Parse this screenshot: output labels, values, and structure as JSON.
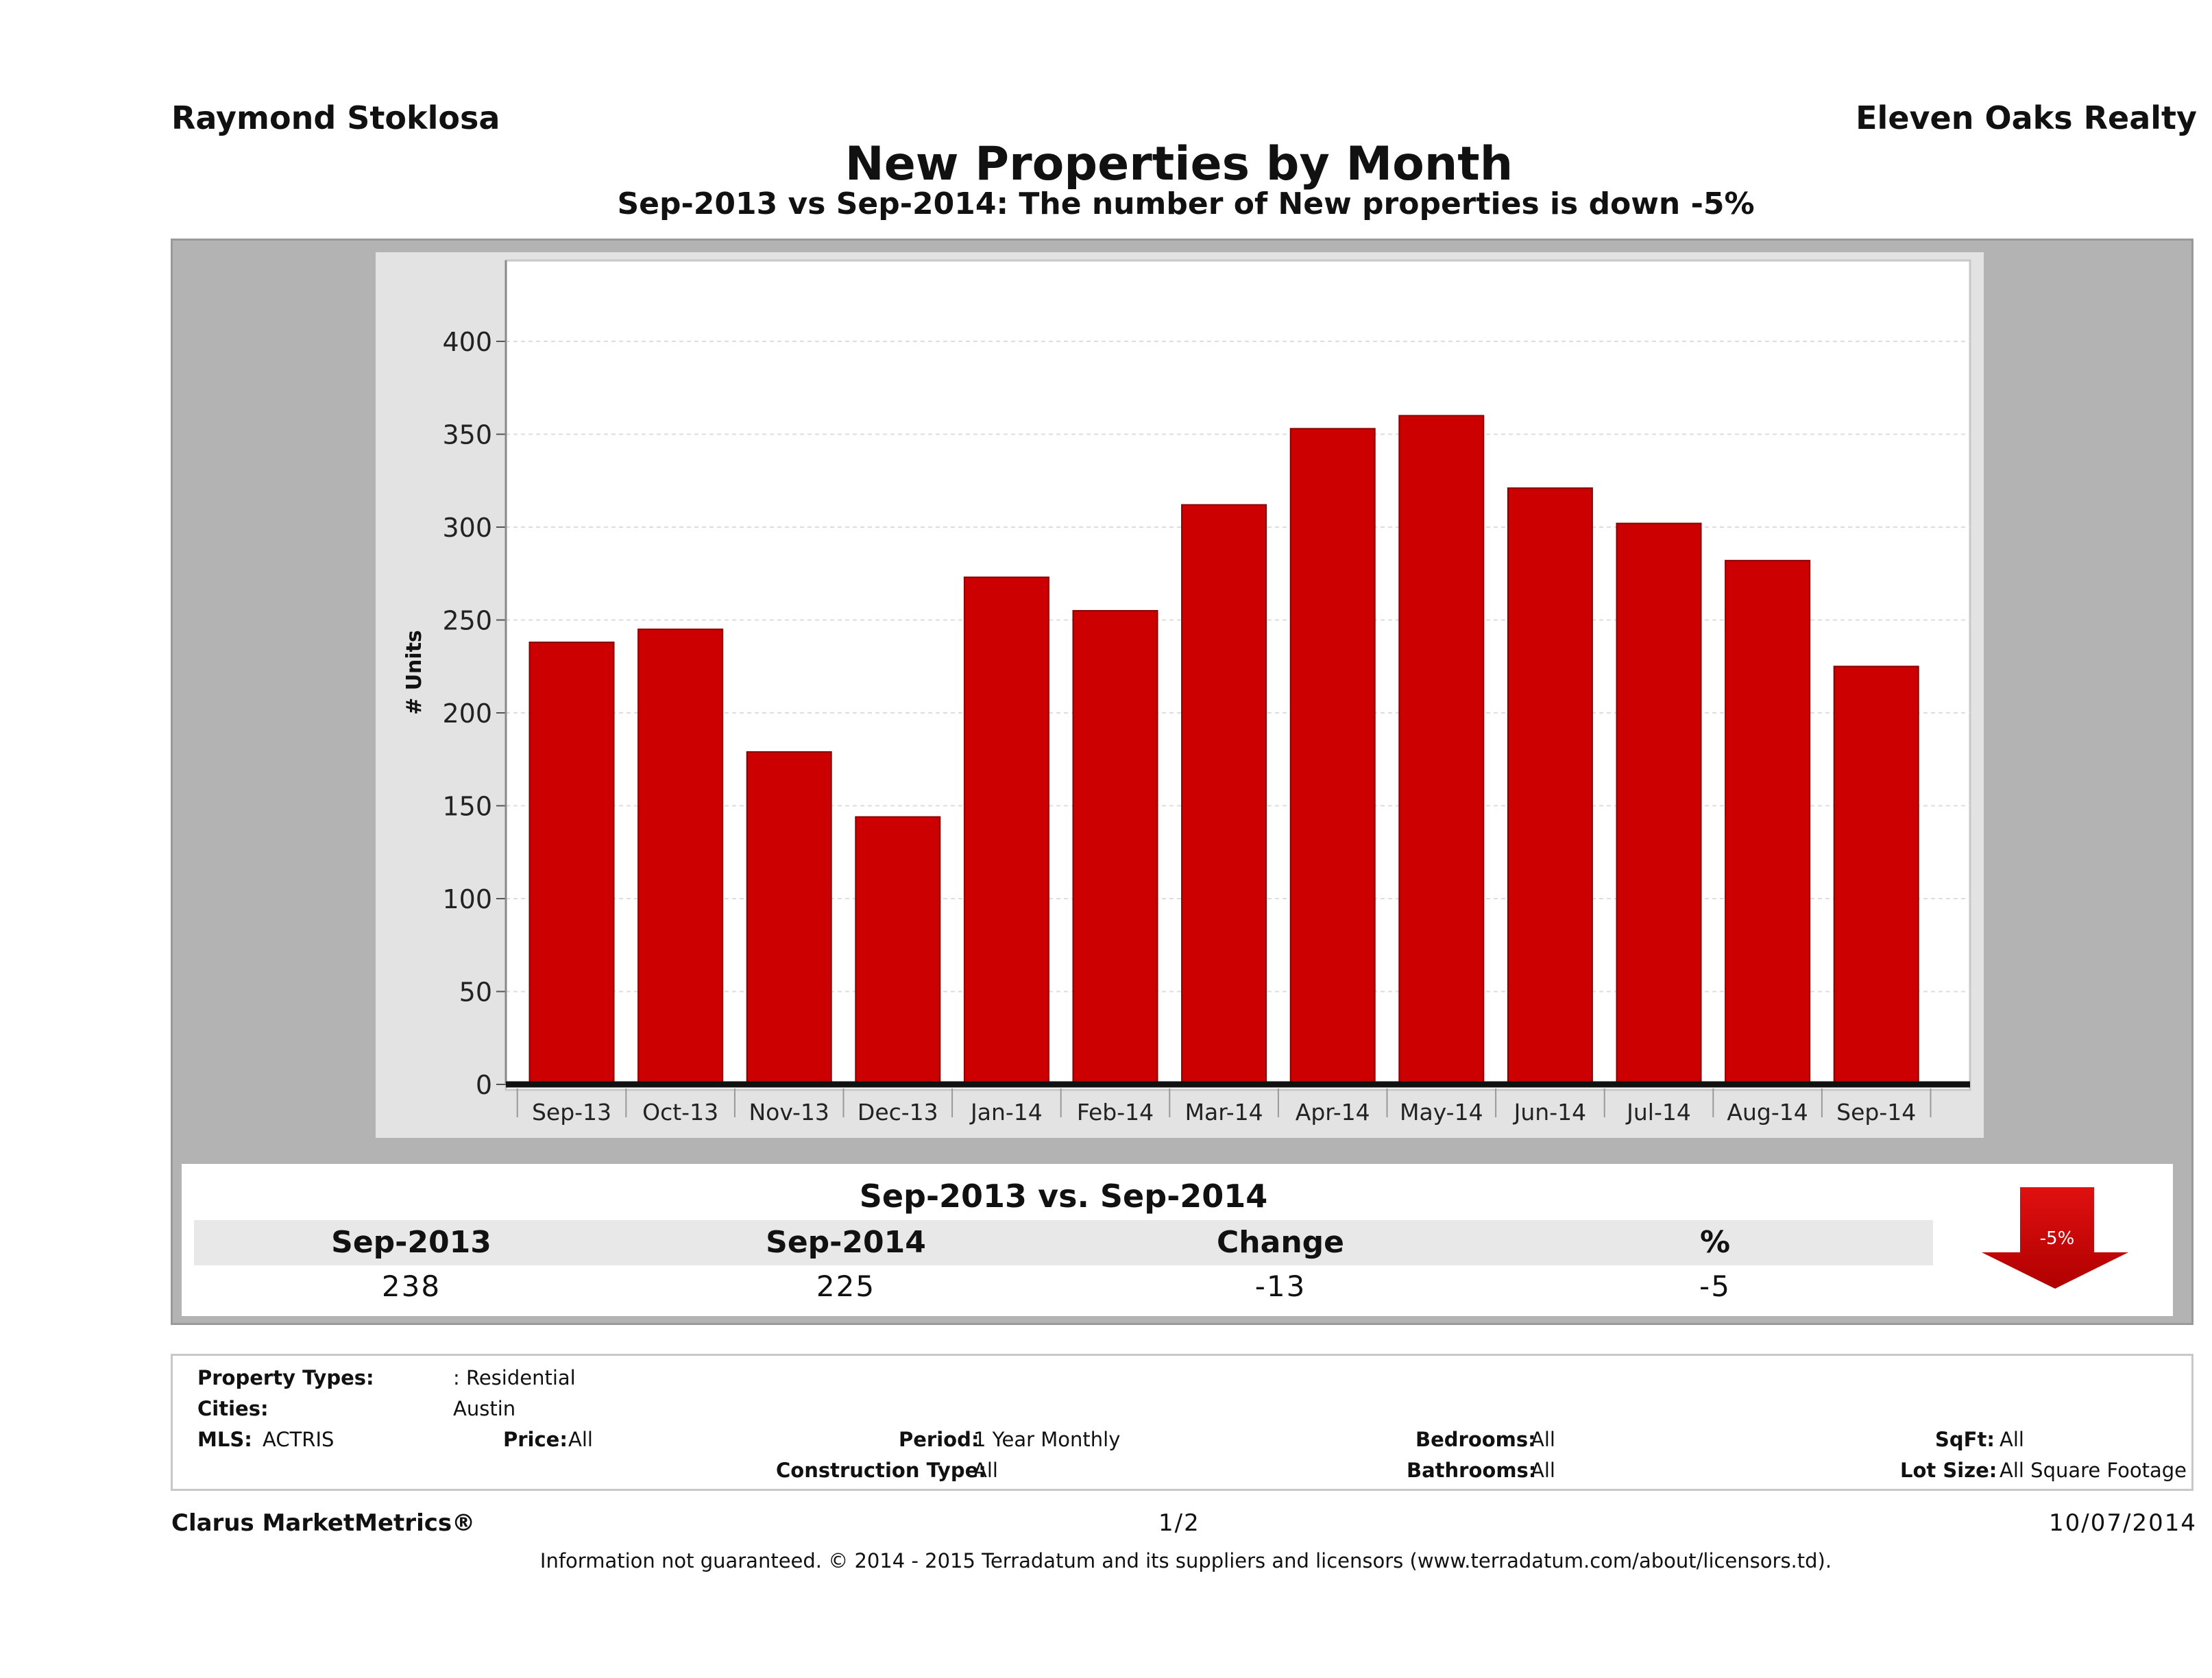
{
  "header": {
    "agent_name": "Raymond Stoklosa",
    "brokerage": "Eleven Oaks Realty",
    "title": "New Properties by Month",
    "subtitle": "Sep-2013 vs Sep-2014: The number of New  properties is down -5%"
  },
  "chart_data": {
    "type": "bar",
    "categories": [
      "Sep-13",
      "Oct-13",
      "Nov-13",
      "Dec-13",
      "Jan-14",
      "Feb-14",
      "Mar-14",
      "Apr-14",
      "May-14",
      "Jun-14",
      "Jul-14",
      "Aug-14",
      "Sep-14"
    ],
    "values": [
      238,
      245,
      179,
      144,
      273,
      255,
      312,
      353,
      360,
      321,
      302,
      282,
      225
    ],
    "title": "",
    "xlabel": "",
    "ylabel": "# Units",
    "ylim": [
      0,
      430
    ],
    "yticks": [
      0,
      50,
      100,
      150,
      200,
      250,
      300,
      350,
      400
    ],
    "grid": true,
    "bar_color": "#cc0000"
  },
  "summary": {
    "title": "Sep-2013 vs. Sep-2014",
    "headers": [
      "Sep-2013",
      "Sep-2014",
      "Change",
      "%"
    ],
    "values": [
      "238",
      "225",
      "-13",
      "-5"
    ],
    "badge": "-5%",
    "badge_color": "#cc0000"
  },
  "filters": {
    "property_types_label": "Property Types:",
    "property_types_value": ": Residential",
    "cities_label": "Cities:",
    "cities_value": "Austin",
    "mls_label": "MLS:",
    "mls_value": "ACTRIS",
    "price_label": "Price:",
    "price_value": "All",
    "period_label": "Period:",
    "period_value": "1 Year Monthly",
    "construction_label": "Construction Type:",
    "construction_value": "All",
    "bedrooms_label": "Bedrooms:",
    "bedrooms_value": "All",
    "bathrooms_label": "Bathrooms:",
    "bathrooms_value": "All",
    "sqft_label": "SqFt:",
    "sqft_value": "All",
    "lotsize_label": "Lot Size:",
    "lotsize_value": "All Square Footage"
  },
  "footer": {
    "product": "Clarus MarketMetrics®",
    "page": "1/2",
    "date": "10/07/2014",
    "disclaimer": "Information not guaranteed. © 2014 - 2015 Terradatum and its suppliers and licensors (www.terradatum.com/about/licensors.td)."
  }
}
